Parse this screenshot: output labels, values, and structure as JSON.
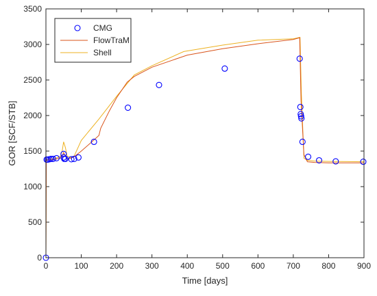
{
  "chart_data": {
    "type": "line",
    "title": "",
    "xlabel": "Time [days]",
    "ylabel": "GOR [SCF/STB]",
    "xlim": [
      0,
      900
    ],
    "ylim": [
      0,
      3500
    ],
    "xticks": [
      "0",
      "100",
      "200",
      "300",
      "400",
      "500",
      "600",
      "700",
      "800",
      "900"
    ],
    "yticks": [
      "0",
      "500",
      "1000",
      "1500",
      "2000",
      "2500",
      "3000",
      "3500"
    ],
    "grid": false,
    "legend_position": "top-left",
    "series": [
      {
        "name": "CMG",
        "kind": "scatter",
        "color": "#0000ff",
        "x": [
          0,
          2,
          5,
          10,
          14,
          20,
          30,
          50,
          50,
          52,
          55,
          72,
          80,
          92,
          136,
          232,
          320,
          506,
          718,
          720,
          721,
          722,
          723,
          726,
          742,
          773,
          820,
          898
        ],
        "y": [
          0,
          1380,
          1380,
          1385,
          1390,
          1390,
          1400,
          1460,
          1410,
          1390,
          1390,
          1385,
          1390,
          1410,
          1630,
          2110,
          2430,
          2660,
          2800,
          2120,
          2020,
          1990,
          1960,
          1630,
          1420,
          1370,
          1355,
          1350
        ]
      },
      {
        "name": "FlowTraM",
        "kind": "line",
        "color": "#d95319",
        "x": [
          0,
          1,
          3,
          10,
          20,
          30,
          40,
          46,
          50,
          55,
          60,
          70,
          80,
          100,
          130,
          150,
          155,
          180,
          200,
          230,
          250,
          300,
          400,
          500,
          600,
          700,
          718,
          722,
          730,
          740,
          760,
          800,
          900
        ],
        "y": [
          0,
          1370,
          1372,
          1375,
          1380,
          1390,
          1400,
          1430,
          1480,
          1430,
          1390,
          1400,
          1420,
          1500,
          1630,
          1720,
          1820,
          2070,
          2250,
          2470,
          2550,
          2680,
          2850,
          2940,
          3010,
          3070,
          3095,
          2200,
          1450,
          1350,
          1340,
          1335,
          1335
        ]
      },
      {
        "name": "Shell",
        "kind": "line",
        "color": "#edb120",
        "x": [
          0,
          1,
          3,
          20,
          40,
          46,
          50,
          55,
          60,
          70,
          80,
          100,
          150,
          200,
          250,
          300,
          390,
          500,
          600,
          700,
          719,
          723,
          730,
          740,
          760,
          800,
          900
        ],
        "y": [
          0,
          1380,
          1382,
          1390,
          1420,
          1500,
          1630,
          1550,
          1430,
          1410,
          1430,
          1650,
          1950,
          2270,
          2570,
          2700,
          2900,
          2990,
          3060,
          3080,
          3100,
          2300,
          1400,
          1370,
          1360,
          1355,
          1350
        ]
      }
    ]
  }
}
